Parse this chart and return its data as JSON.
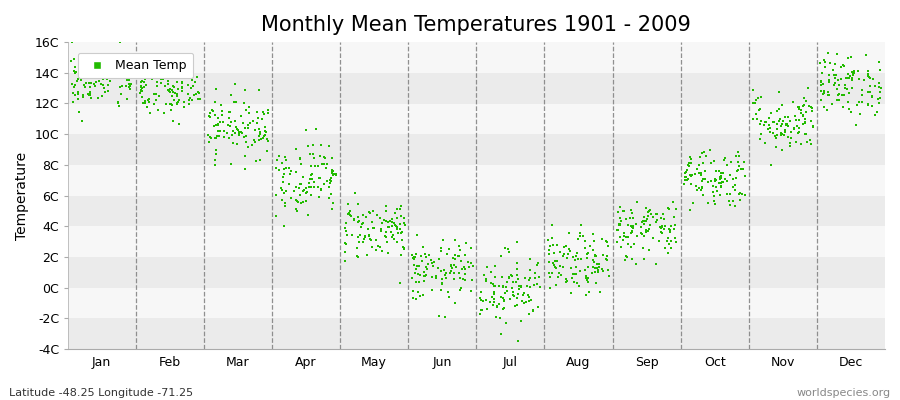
{
  "title": "Monthly Mean Temperatures 1901 - 2009",
  "ylabel": "Temperature",
  "subtitle_left": "Latitude -48.25 Longitude -71.25",
  "subtitle_right": "worldspecies.org",
  "ylim": [
    -4,
    16
  ],
  "yticks": [
    -4,
    -2,
    0,
    2,
    4,
    6,
    8,
    10,
    12,
    14,
    16
  ],
  "ytick_labels": [
    "-4C",
    "-2C",
    "0C",
    "2C",
    "4C",
    "6C",
    "8C",
    "10C",
    "12C",
    "14C",
    "16C"
  ],
  "months": [
    "Jan",
    "Feb",
    "Mar",
    "Apr",
    "May",
    "Jun",
    "Jul",
    "Aug",
    "Sep",
    "Oct",
    "Nov",
    "Dec"
  ],
  "mean_temps": [
    13.5,
    12.8,
    10.5,
    7.2,
    3.8,
    1.0,
    0.0,
    1.5,
    3.8,
    7.2,
    10.8,
    13.2
  ],
  "std_temps": [
    1.0,
    1.0,
    1.0,
    1.2,
    1.0,
    1.0,
    1.2,
    1.0,
    1.0,
    1.0,
    1.0,
    1.0
  ],
  "n_years": 109,
  "dot_color": "#22bb00",
  "dot_size": 3,
  "band_colors": [
    "#ebebeb",
    "#f7f7f7"
  ],
  "vline_color": "#777777",
  "legend_label": "Mean Temp",
  "title_fontsize": 15,
  "label_fontsize": 10,
  "tick_fontsize": 9,
  "seed": 42
}
